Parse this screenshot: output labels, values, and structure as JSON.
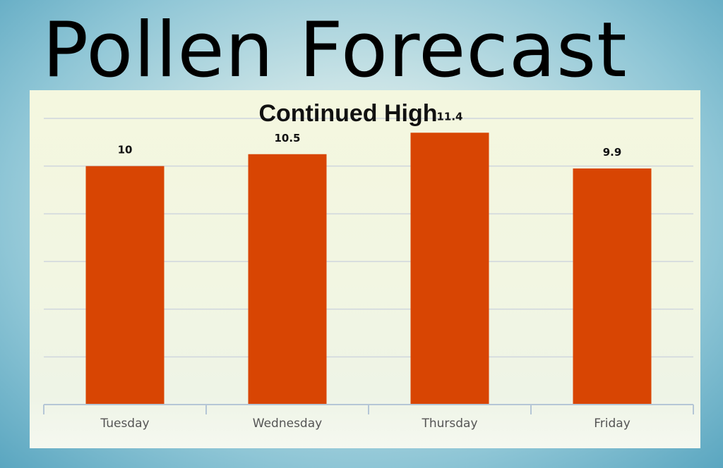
{
  "page": {
    "title": "Pollen Forecast"
  },
  "chart_data": {
    "type": "bar",
    "title": "Continued High",
    "categories": [
      "Tuesday",
      "Wednesday",
      "Thursday",
      "Friday"
    ],
    "values": [
      10,
      10.5,
      11.4,
      9.9
    ],
    "value_labels": [
      "10",
      "10.5",
      "11.4",
      "9.9"
    ],
    "xlabel": "",
    "ylabel": "",
    "ylim": [
      0,
      12
    ],
    "grid": true,
    "y_tick_labels_shown": false,
    "legend": "none",
    "colors": {
      "bar": "#d84503",
      "grid": "#cfd6dd",
      "axis": "#b5c6d6"
    }
  }
}
